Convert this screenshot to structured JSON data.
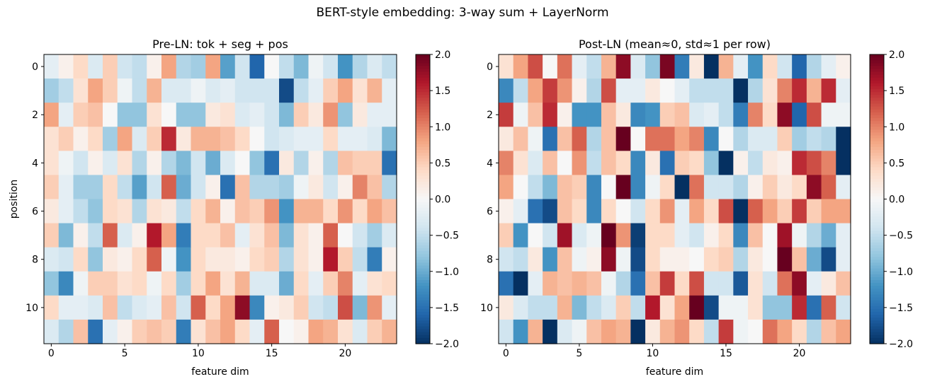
{
  "figure": {
    "title": "BERT-style embedding: 3-way sum + LayerNorm"
  },
  "colormap": {
    "name": "RdBu_r",
    "stops": [
      "#053061",
      "#2166ac",
      "#4393c3",
      "#92c5de",
      "#d1e5f0",
      "#f7f7f7",
      "#fddbc7",
      "#f4a582",
      "#d6604d",
      "#b2182b",
      "#67001f"
    ]
  },
  "chart_data": [
    {
      "type": "heatmap",
      "title": "Pre-LN: tok + seg + pos",
      "xlabel": "feature dim",
      "ylabel": "position",
      "xticks": [
        0,
        5,
        10,
        15,
        20
      ],
      "yticks": [
        0,
        2,
        4,
        6,
        8,
        10
      ],
      "vmin": -2.0,
      "vmax": 2.0,
      "colorbar_ticks": [
        2.0,
        1.5,
        1.0,
        0.5,
        0.0,
        -0.5,
        -1.0,
        -1.5,
        -2.0
      ],
      "colorbar_labels": [
        "2.0",
        "1.5",
        "1.0",
        "0.5",
        "0.0",
        "−0.5",
        "−1.0",
        "−1.5",
        "−2.0"
      ],
      "values": [
        [
          -0.2,
          0.1,
          0.4,
          -0.3,
          0.5,
          -0.4,
          -0.5,
          0.1,
          0.8,
          -0.6,
          -0.7,
          0.8,
          -1.1,
          -0.4,
          -1.6,
          0.0,
          -0.5,
          -0.9,
          -0.1,
          -0.4,
          -1.2,
          -0.6,
          -0.3,
          -0.5
        ],
        [
          -0.7,
          -0.5,
          0.3,
          0.8,
          0.5,
          -0.1,
          -0.5,
          0.7,
          -0.3,
          -0.3,
          -0.1,
          -0.3,
          -0.2,
          -0.4,
          -0.4,
          -0.4,
          -1.8,
          -0.5,
          -0.2,
          0.5,
          0.8,
          0.3,
          0.7,
          -0.2
        ],
        [
          0.8,
          -0.2,
          0.5,
          0.6,
          0.0,
          -0.8,
          -0.8,
          0.3,
          0.0,
          -0.8,
          -0.8,
          0.2,
          0.3,
          -0.3,
          -0.2,
          -0.4,
          -0.9,
          0.5,
          0.2,
          0.9,
          -0.8,
          0.2,
          -0.2,
          -0.2
        ],
        [
          0.3,
          0.5,
          0.1,
          0.4,
          -0.7,
          0.8,
          -0.3,
          0.5,
          1.5,
          0.2,
          0.7,
          0.7,
          0.6,
          0.4,
          0.0,
          -0.4,
          -0.3,
          -0.2,
          -0.2,
          0.4,
          -0.2,
          -0.2,
          -0.3,
          -0.9
        ],
        [
          0.3,
          -0.1,
          -0.4,
          0.1,
          -0.3,
          0.3,
          -0.6,
          0.1,
          -0.6,
          -0.9,
          -0.4,
          -1.0,
          -0.3,
          0.0,
          -0.8,
          -1.5,
          0.2,
          -0.6,
          0.1,
          -0.6,
          0.6,
          0.5,
          0.5,
          -1.5
        ],
        [
          0.5,
          -0.2,
          -0.7,
          -0.7,
          0.4,
          -0.5,
          -1.1,
          -0.4,
          1.2,
          -1.0,
          -0.4,
          0.1,
          -1.5,
          0.6,
          -0.6,
          -0.6,
          -0.7,
          -0.1,
          0.2,
          -0.4,
          0.1,
          1.0,
          0.6,
          -0.6
        ],
        [
          0.2,
          -0.2,
          -0.5,
          -0.8,
          0.4,
          0.3,
          -0.6,
          0.3,
          0.2,
          -0.5,
          0.4,
          0.7,
          0.1,
          0.6,
          0.5,
          0.9,
          -1.2,
          0.7,
          0.7,
          0.4,
          0.9,
          0.4,
          0.8,
          0.6
        ],
        [
          0.5,
          -0.9,
          0.1,
          -0.5,
          1.2,
          -0.3,
          0.1,
          1.6,
          0.8,
          -1.4,
          0.4,
          0.4,
          0.6,
          -0.2,
          0.3,
          0.6,
          -0.9,
          0.3,
          0.1,
          1.2,
          0.0,
          -0.4,
          -0.7,
          -0.3
        ],
        [
          -0.3,
          -0.4,
          0.4,
          -0.8,
          0.2,
          0.1,
          0.4,
          1.2,
          -0.1,
          -1.2,
          0.4,
          0.2,
          0.2,
          0.1,
          0.4,
          0.5,
          -0.6,
          0.3,
          0.1,
          1.6,
          0.5,
          -0.5,
          -1.4,
          0.1
        ],
        [
          -0.8,
          -1.3,
          -0.1,
          0.5,
          0.5,
          0.3,
          0.4,
          -0.1,
          0.4,
          -0.7,
          0.4,
          0.8,
          0.3,
          0.7,
          -0.3,
          -0.3,
          -1.0,
          0.4,
          -0.2,
          0.5,
          1.0,
          -0.2,
          0.3,
          0.4
        ],
        [
          0.4,
          -0.2,
          -0.2,
          -0.3,
          0.6,
          -0.5,
          -0.3,
          -0.2,
          0.6,
          -0.4,
          1.2,
          0.4,
          0.8,
          1.8,
          -1.3,
          0.1,
          0.2,
          0.5,
          -0.4,
          -0.5,
          1.3,
          -0.9,
          0.9,
          -0.2
        ],
        [
          -0.3,
          -0.6,
          0.6,
          -1.5,
          -0.2,
          0.1,
          0.5,
          0.6,
          0.5,
          -1.4,
          0.3,
          0.6,
          0.8,
          0.4,
          -0.2,
          1.2,
          0.0,
          0.1,
          0.8,
          0.7,
          0.3,
          -0.3,
          0.5,
          0.7
        ]
      ]
    },
    {
      "type": "heatmap",
      "title": "Post-LN (mean≈0, std≈1 per row)",
      "xlabel": "feature dim",
      "ylabel": "",
      "xticks": [
        0,
        5,
        10,
        15,
        20
      ],
      "yticks": [
        0,
        2,
        4,
        6,
        8,
        10
      ],
      "vmin": -2.0,
      "vmax": 2.0,
      "colorbar_ticks": [
        2.0,
        1.5,
        1.0,
        0.5,
        0.0,
        -0.5,
        -1.0,
        -1.5,
        -2.0
      ],
      "colorbar_labels": [
        "2.0",
        "1.5",
        "1.0",
        "0.5",
        "0.0",
        "−0.5",
        "−1.0",
        "−1.5",
        "−2.0"
      ],
      "values": [
        [
          0.3,
          0.8,
          1.3,
          0.0,
          1.1,
          -0.2,
          -0.5,
          0.7,
          1.8,
          -0.3,
          -0.8,
          1.9,
          -1.4,
          0.2,
          -2.0,
          0.7,
          -0.2,
          -1.2,
          0.4,
          -0.4,
          -1.6,
          -0.6,
          -0.2,
          0.1
        ],
        [
          -1.3,
          -0.5,
          0.8,
          1.4,
          0.9,
          0.1,
          -0.6,
          1.3,
          -0.2,
          -0.2,
          0.2,
          0.0,
          -0.2,
          -0.5,
          -0.5,
          -0.5,
          -2.0,
          -0.6,
          0.3,
          1.0,
          1.5,
          0.7,
          1.5,
          -0.2
        ],
        [
          1.4,
          -0.1,
          0.6,
          1.5,
          0.1,
          -1.2,
          -1.2,
          0.6,
          0.2,
          -1.3,
          -1.2,
          0.5,
          0.6,
          -0.3,
          -0.2,
          -0.5,
          -1.4,
          1.0,
          0.4,
          1.8,
          -1.6,
          1.3,
          -0.1,
          -0.1
        ],
        [
          0.2,
          0.6,
          -0.1,
          -1.5,
          0.6,
          1.2,
          -0.6,
          0.6,
          2.0,
          0.0,
          1.1,
          1.1,
          0.8,
          1.0,
          -1.3,
          0.0,
          -0.6,
          -0.3,
          -0.3,
          0.5,
          -0.7,
          -0.5,
          -0.6,
          -2.0
        ],
        [
          1.0,
          0.3,
          -0.3,
          0.6,
          0.0,
          0.9,
          -0.5,
          0.6,
          0.4,
          -1.3,
          0.2,
          -1.5,
          0.5,
          0.4,
          -0.8,
          -2.0,
          0.1,
          -0.5,
          0.2,
          0.1,
          1.5,
          1.3,
          1.0,
          -2.0
        ],
        [
          0.8,
          0.0,
          -0.5,
          -0.9,
          0.6,
          0.5,
          -1.3,
          0.0,
          2.0,
          -1.3,
          -0.1,
          0.4,
          -2.0,
          1.1,
          -0.4,
          -0.4,
          -0.6,
          0.1,
          0.5,
          0.2,
          0.4,
          1.8,
          1.2,
          -0.2
        ],
        [
          0.1,
          -0.2,
          -1.5,
          -1.8,
          0.6,
          0.4,
          -1.3,
          0.4,
          0.0,
          -0.4,
          0.4,
          0.9,
          -0.2,
          0.8,
          0.4,
          1.3,
          -2.0,
          1.2,
          0.8,
          0.5,
          1.4,
          0.5,
          0.8,
          0.8
        ],
        [
          0.5,
          -1.2,
          0.0,
          -0.4,
          1.7,
          -0.3,
          -0.1,
          2.0,
          0.9,
          -1.9,
          0.4,
          0.4,
          -0.2,
          -0.4,
          0.1,
          0.4,
          -1.3,
          0.6,
          0.0,
          1.7,
          -0.1,
          -0.6,
          -1.0,
          -0.2
        ],
        [
          -0.4,
          -0.5,
          0.2,
          -1.2,
          0.6,
          -0.1,
          0.1,
          1.8,
          -0.1,
          -1.8,
          0.4,
          0.1,
          0.1,
          0.0,
          0.4,
          0.5,
          -0.6,
          0.2,
          0.0,
          2.0,
          0.6,
          -1.0,
          -1.8,
          -0.2
        ],
        [
          -1.5,
          -2.0,
          -0.2,
          0.7,
          0.6,
          0.7,
          0.6,
          -0.1,
          -0.6,
          -1.5,
          0.6,
          1.4,
          0.4,
          1.3,
          -0.4,
          -0.4,
          -1.7,
          0.3,
          -0.4,
          1.1,
          1.8,
          -0.2,
          0.2,
          0.6
        ],
        [
          0.2,
          -0.3,
          -0.5,
          -0.5,
          0.7,
          -0.9,
          -0.5,
          -0.3,
          0.5,
          -0.5,
          1.6,
          0.3,
          0.8,
          2.0,
          -1.8,
          -0.1,
          -0.1,
          0.3,
          -0.8,
          -0.8,
          1.5,
          -1.5,
          1.2,
          -0.4
        ],
        [
          -0.4,
          -1.2,
          0.7,
          -2.0,
          -0.3,
          -0.1,
          0.6,
          0.8,
          0.7,
          -2.0,
          0.2,
          0.7,
          0.9,
          0.4,
          -0.5,
          1.4,
          -0.1,
          0.0,
          1.1,
          0.8,
          0.4,
          -0.6,
          0.6,
          0.8
        ]
      ]
    }
  ]
}
